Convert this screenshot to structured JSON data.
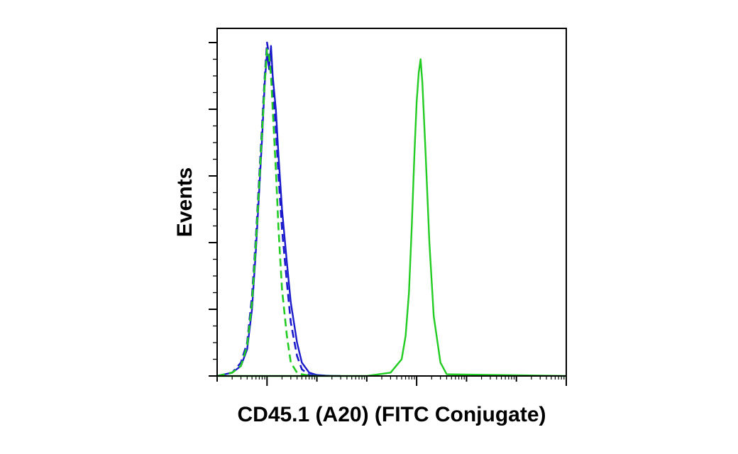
{
  "chart_data": {
    "type": "line",
    "title": "",
    "xlabel": "CD45.1 (A20) (FITC Conjugate)",
    "ylabel": "Events",
    "x_scale": "log",
    "xlim": [
      0.1,
      1000000
    ],
    "ylim": [
      0,
      100
    ],
    "x_major_ticks": [
      1,
      1000,
      1000000
    ],
    "y_ticks": [
      0,
      20,
      40,
      60,
      80,
      100
    ],
    "grid": false,
    "legend": "none",
    "series": [
      {
        "color": "#1a1acc",
        "style": "solid",
        "x": [
          0.1,
          0.2,
          0.3,
          0.4,
          0.5,
          0.6,
          0.7,
          0.8,
          0.9,
          1.0,
          1.1,
          1.2,
          1.3,
          1.5,
          1.7,
          2.0,
          2.5,
          3.0,
          4.0,
          5.0,
          7.0,
          10,
          15,
          20,
          30
        ],
        "y": [
          0,
          1,
          3,
          8,
          20,
          38,
          56,
          72,
          88,
          97,
          92,
          99,
          90,
          80,
          66,
          50,
          34,
          22,
          10,
          4,
          1,
          0.3,
          0.1,
          0.05,
          0
        ]
      },
      {
        "color": "#1a1acc",
        "style": "dashed",
        "x": [
          0.1,
          0.2,
          0.3,
          0.4,
          0.5,
          0.6,
          0.7,
          0.8,
          0.9,
          1.0,
          1.1,
          1.2,
          1.3,
          1.5,
          1.7,
          2.0,
          2.5,
          3.0,
          4.0,
          5.0,
          7.0,
          10
        ],
        "y": [
          0,
          1,
          4,
          10,
          24,
          42,
          60,
          76,
          90,
          100,
          96,
          94,
          88,
          74,
          60,
          44,
          28,
          16,
          6,
          2,
          0.3,
          0
        ]
      },
      {
        "color": "#22cc22",
        "style": "dashed",
        "x": [
          0.1,
          0.2,
          0.3,
          0.4,
          0.5,
          0.6,
          0.7,
          0.8,
          0.9,
          1.0,
          1.1,
          1.2,
          1.3,
          1.5,
          1.7,
          2.0,
          2.5,
          3.0,
          4.0,
          5.0,
          7.0,
          10
        ],
        "y": [
          0,
          1,
          3,
          9,
          22,
          40,
          58,
          74,
          88,
          98,
          96,
          90,
          80,
          62,
          44,
          26,
          12,
          4,
          1,
          0.5,
          0.1,
          0
        ]
      },
      {
        "color": "#22cc22",
        "style": "solid",
        "x": [
          0.1,
          100,
          300,
          500,
          600,
          700,
          800,
          900,
          1000,
          1100,
          1200,
          1300,
          1500,
          1800,
          2200,
          3000,
          4000,
          1000000
        ],
        "y": [
          0,
          0,
          1,
          5,
          12,
          25,
          45,
          66,
          82,
          91,
          95,
          88,
          68,
          40,
          18,
          4,
          0.5,
          0
        ]
      }
    ]
  }
}
